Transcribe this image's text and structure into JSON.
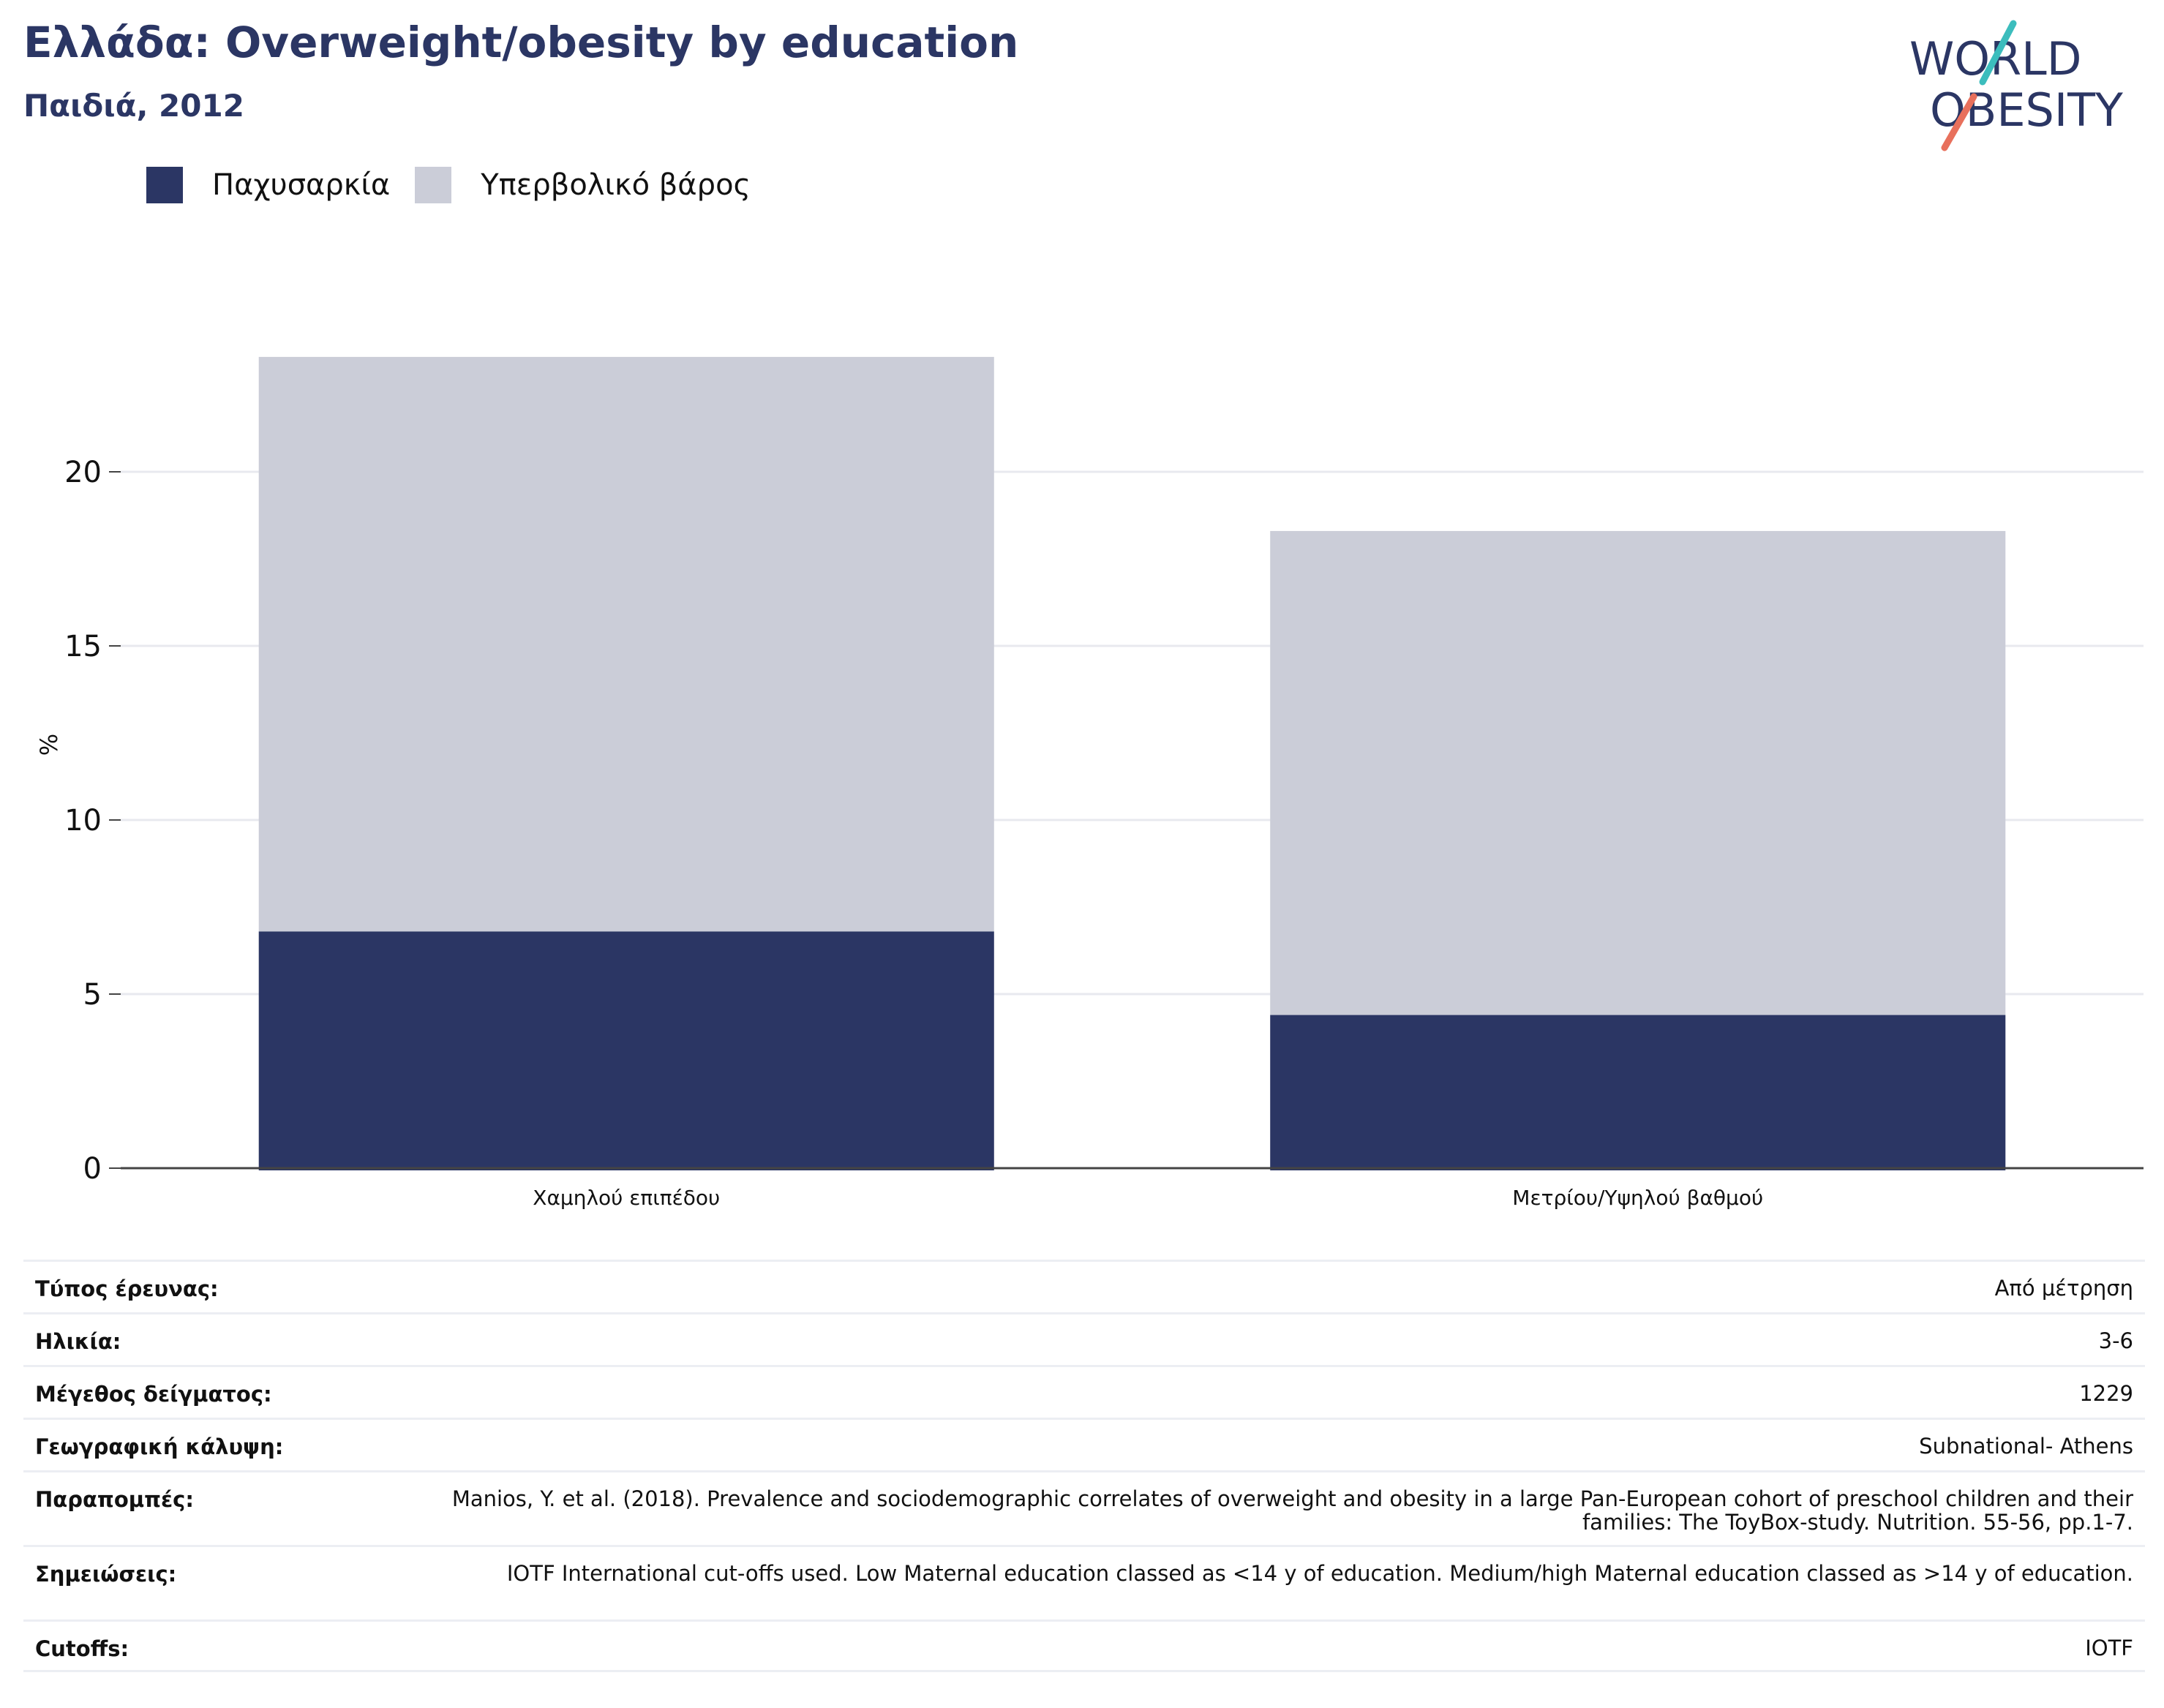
{
  "header": {
    "title": "Ελλάδα: Overweight/obesity by education",
    "subtitle": "Παιδιά, 2012"
  },
  "logo": {
    "line1": "WORLD",
    "line2": "OBESITY",
    "colors": {
      "text": "#2b3664",
      "teal": "#3cbdbd",
      "coral": "#e8705c"
    }
  },
  "legend": {
    "items": [
      {
        "label": "Παχυσαρκία",
        "color": "#2b3664"
      },
      {
        "label": "Υπερβολικό βάρος",
        "color": "#cbcdd8"
      }
    ]
  },
  "chart_data": {
    "type": "bar",
    "stacked": true,
    "categories": [
      "Χαμηλού επιπέδου",
      "Μετρίου/Υψηλού βαθμού"
    ],
    "series": [
      {
        "name": "Παχυσαρκία",
        "values": [
          6.8,
          4.4
        ],
        "color": "#2b3664"
      },
      {
        "name": "Υπερβολικό βάρος",
        "values": [
          16.5,
          13.9
        ],
        "color": "#cbcdd8"
      }
    ],
    "ylabel": "%",
    "ylim": [
      0,
      25
    ],
    "yticks": [
      0,
      5,
      10,
      15,
      20
    ],
    "grid": true,
    "legend_position": "top-left"
  },
  "meta": {
    "rows": [
      {
        "label": "Τύπος έρευνας:",
        "value": "Από μέτρηση"
      },
      {
        "label": "Ηλικία:",
        "value": "3-6"
      },
      {
        "label": "Μέγεθος δείγματος:",
        "value": "1229"
      },
      {
        "label": "Γεωγραφική κάλυψη:",
        "value": "Subnational- Athens"
      },
      {
        "label": "Παραπομπές:",
        "value": "Manios, Y. et al. (2018). Prevalence and sociodemographic correlates of overweight and obesity in a large Pan-European cohort of preschool children and their families: The ToyBox-study. Nutrition. 55-56, pp.1-7."
      },
      {
        "label": "Σημειώσεις:",
        "value": "IOTF International cut-offs used. Low Maternal education classed as <14 y of education. Medium/high Maternal education classed as >14 y of education."
      },
      {
        "label": "Cutoffs:",
        "value": "IOTF"
      }
    ]
  }
}
